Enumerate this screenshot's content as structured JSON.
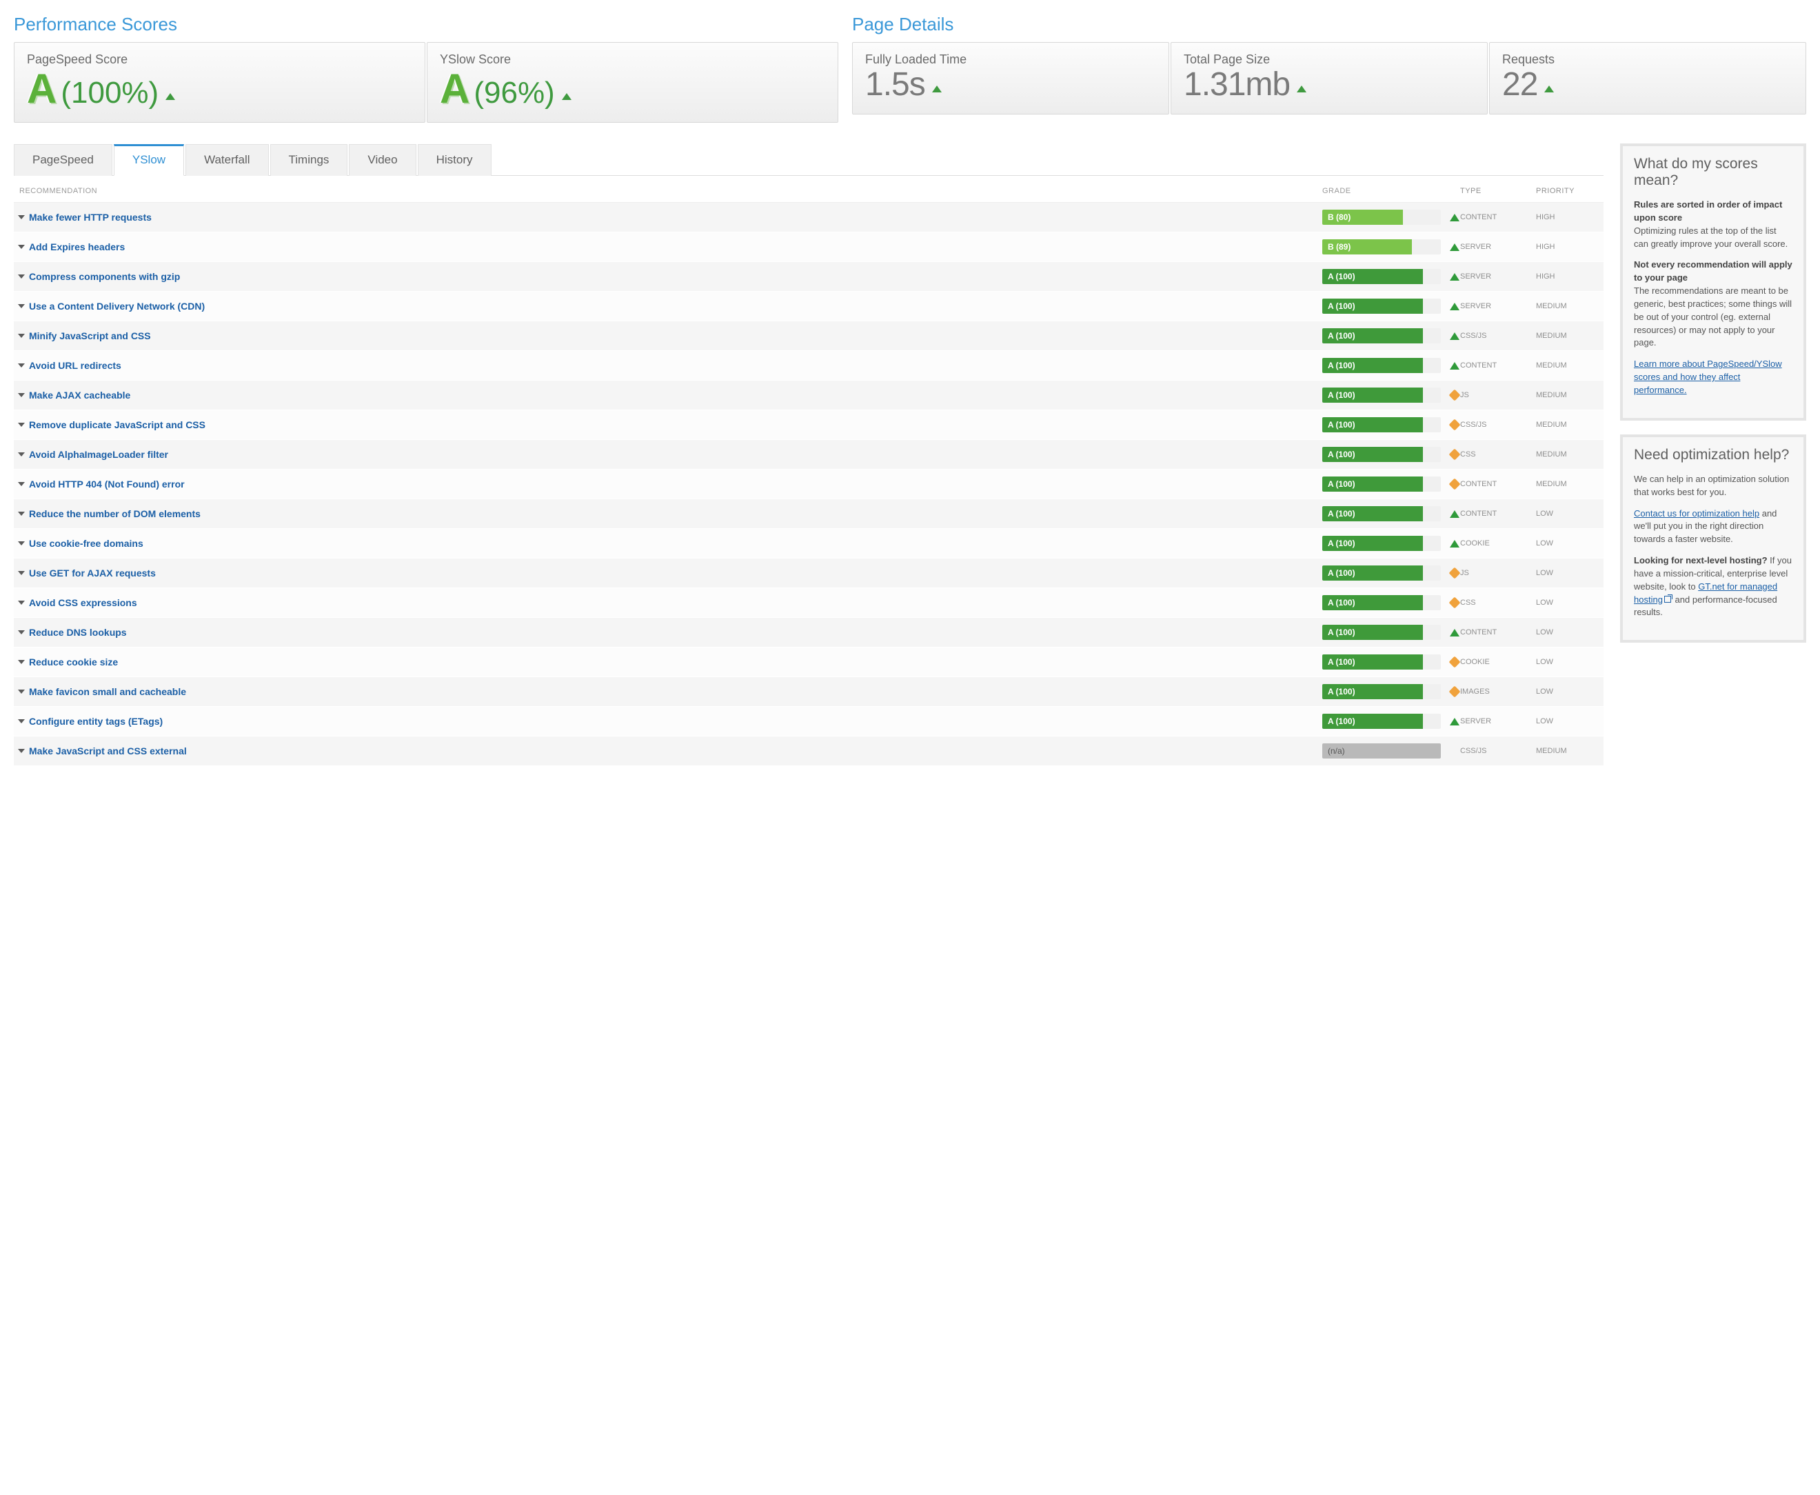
{
  "colors": {
    "accent_blue": "#3a98d8",
    "link_blue": "#1b5fa6",
    "grade_A_text": "#5bb13a",
    "score_green": "#3f9a3f",
    "detail_gray": "#7a7a7a",
    "grade_bar_A": "#3f9a3a",
    "grade_bar_B": "#7cc44a",
    "grade_bar_na": "#b9b9b9",
    "status_up": "#2f9a3a",
    "status_neutral": "#f0a23c",
    "row_odd": "#f5f5f5",
    "row_even": "#fcfcfc",
    "panel_border": "#e4e4e4",
    "panel_bg": "#f7f7f7"
  },
  "perf": {
    "title": "Performance Scores",
    "pagespeed": {
      "label": "PageSpeed Score",
      "grade": "A",
      "pct": "(100%)"
    },
    "yslow": {
      "label": "YSlow Score",
      "grade": "A",
      "pct": "(96%)"
    }
  },
  "details": {
    "title": "Page Details",
    "loaded": {
      "label": "Fully Loaded Time",
      "value": "1.5s"
    },
    "size": {
      "label": "Total Page Size",
      "value": "1.31mb"
    },
    "requests": {
      "label": "Requests",
      "value": "22"
    }
  },
  "tabs": [
    "PageSpeed",
    "YSlow",
    "Waterfall",
    "Timings",
    "Video",
    "History"
  ],
  "active_tab": 1,
  "headers": {
    "rec": "RECOMMENDATION",
    "grade": "GRADE",
    "type": "TYPE",
    "priority": "PRIORITY"
  },
  "rows": [
    {
      "rec": "Make fewer HTTP requests",
      "grade_label": "B (80)",
      "grade_pct": 80,
      "grade_color": "#7cc44a",
      "status": "up",
      "type": "CONTENT",
      "priority": "HIGH"
    },
    {
      "rec": "Add Expires headers",
      "grade_label": "B (89)",
      "grade_pct": 89,
      "grade_color": "#7cc44a",
      "status": "up",
      "type": "SERVER",
      "priority": "HIGH"
    },
    {
      "rec": "Compress components with gzip",
      "grade_label": "A (100)",
      "grade_pct": 100,
      "grade_color": "#3f9a3a",
      "status": "up",
      "type": "SERVER",
      "priority": "HIGH"
    },
    {
      "rec": "Use a Content Delivery Network (CDN)",
      "grade_label": "A (100)",
      "grade_pct": 100,
      "grade_color": "#3f9a3a",
      "status": "up",
      "type": "SERVER",
      "priority": "MEDIUM"
    },
    {
      "rec": "Minify JavaScript and CSS",
      "grade_label": "A (100)",
      "grade_pct": 100,
      "grade_color": "#3f9a3a",
      "status": "up",
      "type": "CSS/JS",
      "priority": "MEDIUM"
    },
    {
      "rec": "Avoid URL redirects",
      "grade_label": "A (100)",
      "grade_pct": 100,
      "grade_color": "#3f9a3a",
      "status": "up",
      "type": "CONTENT",
      "priority": "MEDIUM"
    },
    {
      "rec": "Make AJAX cacheable",
      "grade_label": "A (100)",
      "grade_pct": 100,
      "grade_color": "#3f9a3a",
      "status": "neutral",
      "type": "JS",
      "priority": "MEDIUM"
    },
    {
      "rec": "Remove duplicate JavaScript and CSS",
      "grade_label": "A (100)",
      "grade_pct": 100,
      "grade_color": "#3f9a3a",
      "status": "neutral",
      "type": "CSS/JS",
      "priority": "MEDIUM"
    },
    {
      "rec": "Avoid AlphaImageLoader filter",
      "grade_label": "A (100)",
      "grade_pct": 100,
      "grade_color": "#3f9a3a",
      "status": "neutral",
      "type": "CSS",
      "priority": "MEDIUM"
    },
    {
      "rec": "Avoid HTTP 404 (Not Found) error",
      "grade_label": "A (100)",
      "grade_pct": 100,
      "grade_color": "#3f9a3a",
      "status": "neutral",
      "type": "CONTENT",
      "priority": "MEDIUM"
    },
    {
      "rec": "Reduce the number of DOM elements",
      "grade_label": "A (100)",
      "grade_pct": 100,
      "grade_color": "#3f9a3a",
      "status": "up",
      "type": "CONTENT",
      "priority": "LOW"
    },
    {
      "rec": "Use cookie-free domains",
      "grade_label": "A (100)",
      "grade_pct": 100,
      "grade_color": "#3f9a3a",
      "status": "up",
      "type": "COOKIE",
      "priority": "LOW"
    },
    {
      "rec": "Use GET for AJAX requests",
      "grade_label": "A (100)",
      "grade_pct": 100,
      "grade_color": "#3f9a3a",
      "status": "neutral",
      "type": "JS",
      "priority": "LOW"
    },
    {
      "rec": "Avoid CSS expressions",
      "grade_label": "A (100)",
      "grade_pct": 100,
      "grade_color": "#3f9a3a",
      "status": "neutral",
      "type": "CSS",
      "priority": "LOW"
    },
    {
      "rec": "Reduce DNS lookups",
      "grade_label": "A (100)",
      "grade_pct": 100,
      "grade_color": "#3f9a3a",
      "status": "up",
      "type": "CONTENT",
      "priority": "LOW"
    },
    {
      "rec": "Reduce cookie size",
      "grade_label": "A (100)",
      "grade_pct": 100,
      "grade_color": "#3f9a3a",
      "status": "neutral",
      "type": "COOKIE",
      "priority": "LOW"
    },
    {
      "rec": "Make favicon small and cacheable",
      "grade_label": "A (100)",
      "grade_pct": 100,
      "grade_color": "#3f9a3a",
      "status": "neutral",
      "type": "IMAGES",
      "priority": "LOW"
    },
    {
      "rec": "Configure entity tags (ETags)",
      "grade_label": "A (100)",
      "grade_pct": 100,
      "grade_color": "#3f9a3a",
      "status": "up",
      "type": "SERVER",
      "priority": "LOW"
    },
    {
      "rec": "Make JavaScript and CSS external",
      "grade_label": "(n/a)",
      "grade_pct": 100,
      "grade_color": "na",
      "status": "",
      "type": "CSS/JS",
      "priority": "MEDIUM"
    }
  ],
  "side1": {
    "title": "What do my scores mean?",
    "p1b": "Rules are sorted in order of impact upon score",
    "p1": "Optimizing rules at the top of the list can greatly improve your overall score.",
    "p2b": "Not every recommendation will apply to your page",
    "p2": "The recommendations are meant to be generic, best practices; some things will be out of your control (eg. external resources) or may not apply to your page.",
    "link": "Learn more about PageSpeed/YSlow scores and how they affect performance."
  },
  "side2": {
    "title": "Need optimization help?",
    "p1": "We can help in an optimization solution that works best for you.",
    "link1": "Contact us for optimization help",
    "p2": " and we'll put you in the right direction towards a faster website.",
    "p3b": "Looking for next-level hosting?",
    "p3a": " If you have a mission-critical, enterprise level website, look to ",
    "link2": "GT.net for managed hosting",
    "p3c": " and performance-focused results."
  }
}
